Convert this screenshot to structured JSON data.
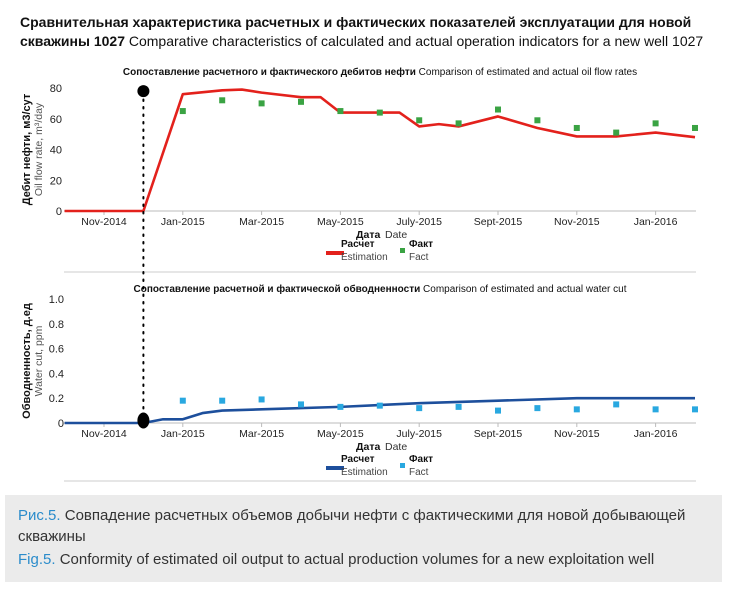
{
  "title": {
    "ru": "Сравнительная характеристика расчетных и фактических показателей эксплуатации для новой скважины 1027",
    "en": "Comparative characteristics of calculated and actual operation indicators for a new well 1027"
  },
  "colors": {
    "oil_estimation": "#e3211c",
    "oil_fact": "#3aa343",
    "water_estimation": "#1d4f9c",
    "water_fact": "#29a8e0"
  },
  "chart_data": [
    {
      "type": "line",
      "title_ru": "Сопоставление расчетного и фактического дебитов нефти",
      "title_en": "Comparison of estimated and actual oil flow rates",
      "ylabel_ru": "Дебит нефти, м3/сут",
      "ylabel_en": "Oil flow rate, m³/day",
      "xlabel_ru": "Дата",
      "xlabel_en": "Date",
      "ylim": [
        0,
        80
      ],
      "yticks": [
        "0",
        "20",
        "40",
        "60",
        "80"
      ],
      "xtick_labels": [
        "Nov-2014",
        "Jan-2015",
        "Mar-2015",
        "May-2015",
        "July-2015",
        "Sept-2015",
        "Nov-2015",
        "Jan-2016"
      ],
      "x_unit": "months since Nov-2014",
      "marker_month": 1,
      "marker_value": 78,
      "series": [
        {
          "name_ru": "Расчет",
          "name_en": "Estimation",
          "kind": "line",
          "x": [
            -1,
            1,
            2,
            3,
            3.5,
            4,
            5,
            5.5,
            6,
            7,
            7.5,
            8,
            8.5,
            9,
            10,
            11,
            12,
            13,
            14,
            15
          ],
          "y": [
            0,
            0,
            76,
            78.5,
            79,
            77,
            74,
            74,
            64,
            64,
            64,
            55,
            56.5,
            55,
            61.5,
            54,
            48.5,
            48.5,
            51,
            48
          ]
        },
        {
          "name_ru": "Факт",
          "name_en": "Fact",
          "kind": "scatter",
          "x": [
            2,
            3,
            4,
            5,
            6,
            7,
            8,
            9,
            10,
            11,
            12,
            13,
            14,
            15
          ],
          "y": [
            65,
            72,
            70,
            71,
            65,
            64,
            59,
            57,
            66,
            59,
            54,
            51,
            57,
            54
          ]
        }
      ]
    },
    {
      "type": "line",
      "title_ru": "Сопоставление расчетной и фактической обводненности",
      "title_en": "Comparison of estimated and actual water cut",
      "ylabel_ru": "Обводненность, д.ед",
      "ylabel_en": "Water cut, ppm",
      "xlabel_ru": "Дата",
      "xlabel_en": "Date",
      "ylim": [
        0,
        1.0
      ],
      "yticks": [
        "0",
        "0.2",
        "0.4",
        "0.6",
        "0.8",
        "1.0"
      ],
      "xtick_labels": [
        "Nov-2014",
        "Jan-2015",
        "Mar-2015",
        "May-2015",
        "July-2015",
        "Sept-2015",
        "Nov-2015",
        "Jan-2016"
      ],
      "marker_month": 1,
      "marker_value": 0.02,
      "series": [
        {
          "name_ru": "Расчет",
          "name_en": "Estimation",
          "kind": "line",
          "x": [
            -1,
            1,
            1.5,
            2,
            2.5,
            3,
            4,
            6,
            8,
            10,
            12,
            15
          ],
          "y": [
            0,
            0,
            0.03,
            0.03,
            0.08,
            0.1,
            0.11,
            0.13,
            0.16,
            0.18,
            0.2,
            0.2
          ]
        },
        {
          "name_ru": "Факт",
          "name_en": "Fact",
          "kind": "scatter",
          "x": [
            2,
            3,
            4,
            5,
            6,
            7,
            8,
            9,
            10,
            11,
            12,
            13,
            14,
            15
          ],
          "y": [
            0.18,
            0.18,
            0.19,
            0.15,
            0.13,
            0.14,
            0.12,
            0.13,
            0.1,
            0.12,
            0.11,
            0.15,
            0.11,
            0.11
          ]
        }
      ]
    }
  ],
  "caption": {
    "ru_label": "Рис.5.",
    "ru_text": "Совпадение расчетных объемов добычи нефти с фактическими для новой добывающей скважины",
    "en_label": "Fig.5.",
    "en_text": "Conformity of estimated oil output to actual production volumes for a new exploitation well"
  }
}
